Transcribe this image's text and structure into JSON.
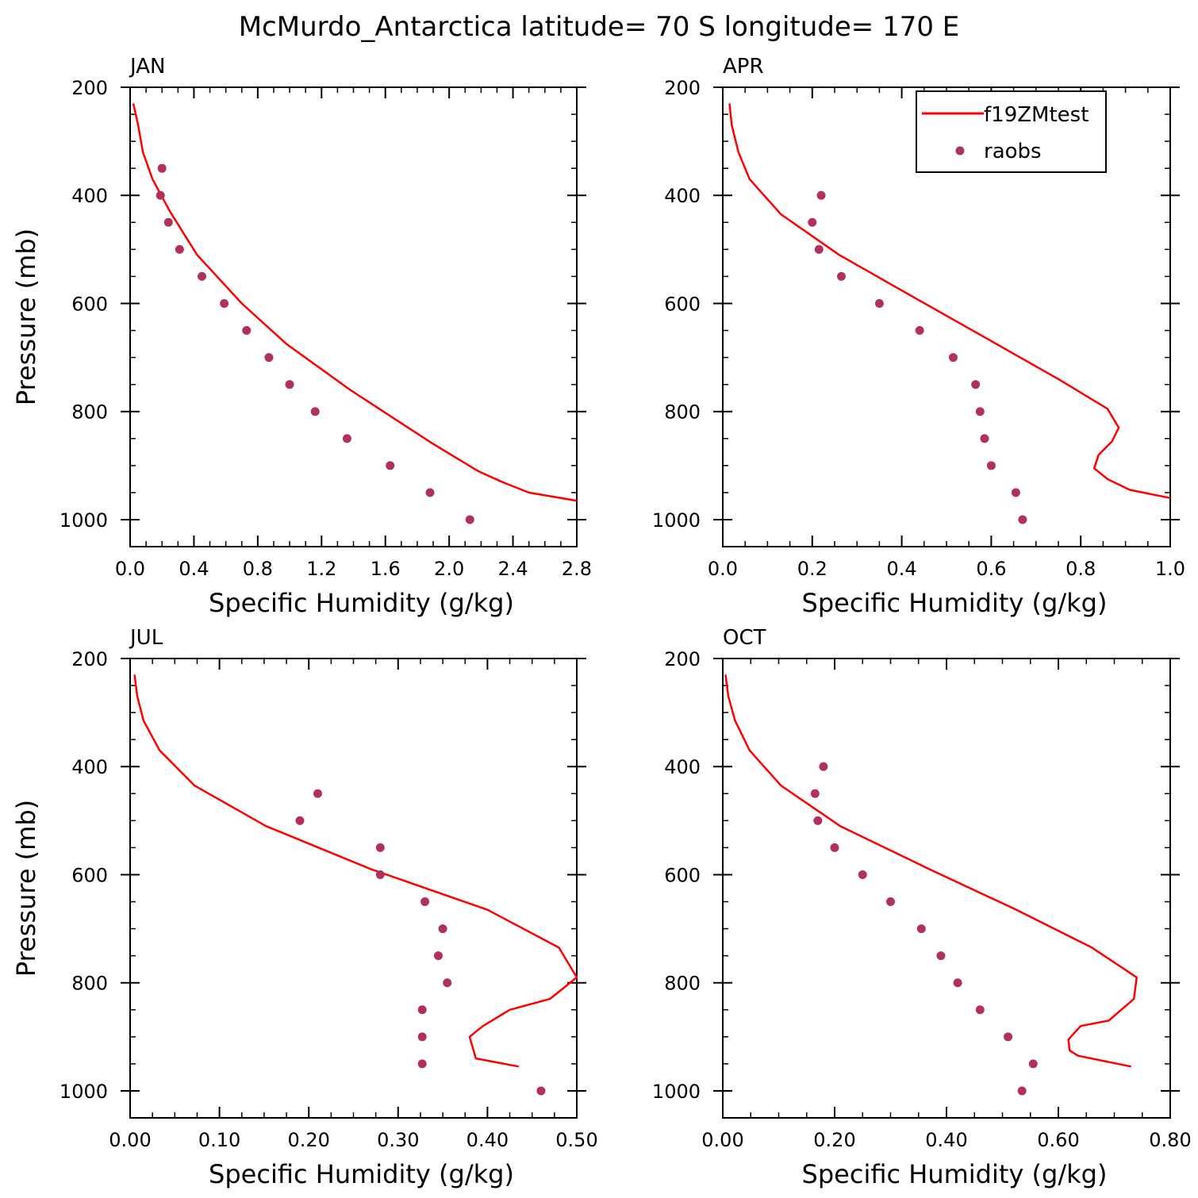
{
  "title": "McMurdo_Antarctica  latitude= 70 S longitude= 170 E",
  "legend": {
    "model_label": "f19ZMtest",
    "obs_label": "raobs"
  },
  "colors": {
    "model_line": "#ff0000",
    "obs_marker": "#b03060"
  },
  "chart_data": [
    {
      "type": "line",
      "panel": "JAN",
      "xlabel": "Specific Humidity (g/kg)",
      "ylabel": "Pressure (mb)",
      "xlim": [
        0.0,
        2.8
      ],
      "ylim": [
        1050,
        200
      ],
      "xticks": [
        "0.0",
        "0.4",
        "0.8",
        "1.2",
        "1.6",
        "2.0",
        "2.4",
        "2.8"
      ],
      "yticks": [
        "200",
        "400",
        "600",
        "800",
        "1000"
      ],
      "model": {
        "pressure": [
          230,
          270,
          320,
          370,
          430,
          510,
          600,
          675,
          760,
          860,
          910,
          930,
          950,
          965
        ],
        "q": [
          0.02,
          0.05,
          0.08,
          0.14,
          0.25,
          0.42,
          0.7,
          0.98,
          1.38,
          1.9,
          2.18,
          2.33,
          2.5,
          2.8
        ]
      },
      "obs": {
        "pressure": [
          350,
          400,
          450,
          500,
          550,
          600,
          650,
          700,
          750,
          800,
          850,
          900,
          950,
          1000
        ],
        "q": [
          0.2,
          0.19,
          0.24,
          0.31,
          0.45,
          0.59,
          0.73,
          0.87,
          1.0,
          1.16,
          1.36,
          1.63,
          1.88,
          2.13
        ]
      }
    },
    {
      "type": "line",
      "panel": "APR",
      "xlabel": "Specific Humidity (g/kg)",
      "ylabel": "",
      "xlim": [
        0.0,
        1.0
      ],
      "ylim": [
        1050,
        200
      ],
      "xticks": [
        "0.0",
        "0.2",
        "0.4",
        "0.6",
        "0.8",
        "1.0"
      ],
      "yticks": [
        "200",
        "400",
        "600",
        "800",
        "1000"
      ],
      "model": {
        "pressure": [
          230,
          270,
          320,
          370,
          435,
          510,
          590,
          665,
          740,
          795,
          830,
          855,
          880,
          905,
          925,
          945,
          960
        ],
        "q": [
          0.015,
          0.02,
          0.035,
          0.06,
          0.13,
          0.26,
          0.43,
          0.59,
          0.75,
          0.86,
          0.885,
          0.87,
          0.84,
          0.83,
          0.86,
          0.91,
          1.0
        ]
      },
      "obs": {
        "pressure": [
          400,
          450,
          500,
          550,
          600,
          650,
          700,
          750,
          800,
          850,
          900,
          950,
          1000
        ],
        "q": [
          0.22,
          0.2,
          0.215,
          0.265,
          0.35,
          0.44,
          0.515,
          0.565,
          0.575,
          0.585,
          0.6,
          0.655,
          0.67
        ]
      }
    },
    {
      "type": "line",
      "panel": "JUL",
      "xlabel": "Specific Humidity (g/kg)",
      "ylabel": "Pressure (mb)",
      "xlim": [
        0.0,
        0.5
      ],
      "ylim": [
        1050,
        200
      ],
      "xticks": [
        "0.00",
        "0.10",
        "0.20",
        "0.30",
        "0.40",
        "0.50"
      ],
      "yticks": [
        "200",
        "400",
        "600",
        "800",
        "1000"
      ],
      "model": {
        "pressure": [
          230,
          270,
          315,
          370,
          435,
          510,
          590,
          665,
          735,
          790,
          830,
          850,
          880,
          900,
          940,
          955
        ],
        "q": [
          0.005,
          0.008,
          0.015,
          0.033,
          0.072,
          0.152,
          0.27,
          0.4,
          0.48,
          0.5,
          0.47,
          0.425,
          0.395,
          0.38,
          0.387,
          0.435
        ]
      },
      "obs": {
        "pressure": [
          450,
          500,
          550,
          600,
          650,
          700,
          750,
          800,
          850,
          900,
          950,
          1000
        ],
        "q": [
          0.21,
          0.19,
          0.28,
          0.28,
          0.33,
          0.35,
          0.345,
          0.355,
          0.327,
          0.327,
          0.327,
          0.46
        ]
      }
    },
    {
      "type": "line",
      "panel": "OCT",
      "xlabel": "Specific Humidity (g/kg)",
      "ylabel": "",
      "xlim": [
        0.0,
        0.8
      ],
      "ylim": [
        1050,
        200
      ],
      "xticks": [
        "0.00",
        "0.20",
        "0.40",
        "0.60",
        "0.80"
      ],
      "yticks": [
        "200",
        "400",
        "600",
        "800",
        "1000"
      ],
      "model": {
        "pressure": [
          230,
          270,
          315,
          370,
          435,
          510,
          590,
          665,
          735,
          790,
          830,
          870,
          880,
          905,
          925,
          935,
          955
        ],
        "q": [
          0.005,
          0.01,
          0.022,
          0.048,
          0.104,
          0.21,
          0.37,
          0.525,
          0.66,
          0.74,
          0.735,
          0.69,
          0.64,
          0.618,
          0.62,
          0.635,
          0.73
        ]
      },
      "obs": {
        "pressure": [
          400,
          450,
          500,
          550,
          600,
          650,
          700,
          750,
          800,
          850,
          900,
          950,
          1000
        ],
        "q": [
          0.18,
          0.165,
          0.17,
          0.2,
          0.25,
          0.3,
          0.355,
          0.39,
          0.42,
          0.46,
          0.51,
          0.555,
          0.535
        ]
      }
    }
  ]
}
